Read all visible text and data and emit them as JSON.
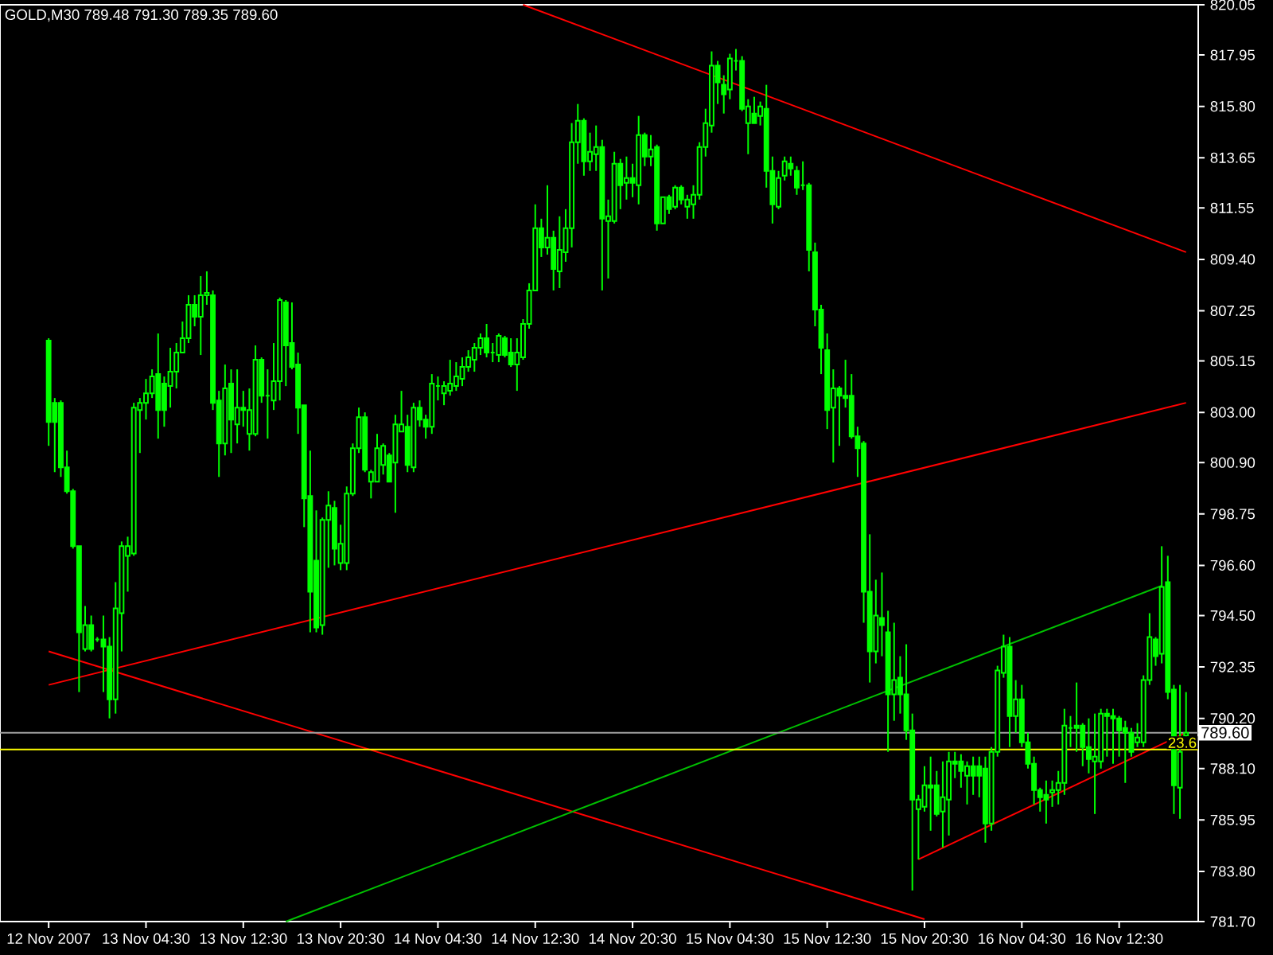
{
  "chart_data": {
    "type": "candlestick",
    "title": "GOLD,M30  789.48 791.30 789.35 789.60",
    "color": "#00ff00",
    "categories": [
      "12 Nov 2007",
      null,
      null,
      null,
      null,
      null,
      null,
      null,
      null,
      null,
      null,
      null,
      null,
      null,
      null,
      null,
      "13 Nov 04:30",
      null,
      null,
      null,
      null,
      null,
      null,
      null,
      null,
      null,
      null,
      null,
      null,
      null,
      null,
      null,
      "13 Nov 12:30",
      null,
      null,
      null,
      null,
      null,
      null,
      null,
      null,
      null,
      null,
      null,
      null,
      null,
      null,
      null,
      "13 Nov 20:30",
      null,
      null,
      null,
      null,
      null,
      null,
      null,
      null,
      null,
      null,
      null,
      null,
      null,
      null,
      null,
      "14 Nov 04:30",
      null,
      null,
      null,
      null,
      null,
      null,
      null,
      null,
      null,
      null,
      null,
      null,
      null,
      null,
      null,
      "14 Nov 12:30",
      null,
      null,
      null,
      null,
      null,
      null,
      null,
      null,
      null,
      null,
      null,
      null,
      null,
      null,
      null,
      "14 Nov 20:30",
      null,
      null,
      null,
      null,
      null,
      null,
      null,
      null,
      null,
      null,
      null,
      null,
      null,
      null,
      null,
      "15 Nov 04:30",
      null,
      null,
      null,
      null,
      null,
      null,
      null,
      null,
      null,
      null,
      null,
      null,
      null,
      null,
      null,
      "15 Nov 12:30",
      null,
      null,
      null,
      null,
      null,
      null,
      null,
      null,
      null,
      null,
      null,
      null,
      null,
      null,
      null,
      "15 Nov 20:30",
      null,
      null,
      null,
      null,
      null,
      null,
      null,
      null,
      null,
      null,
      null,
      null,
      null,
      null,
      null,
      "16 Nov 04:30",
      null,
      null,
      null,
      null,
      null,
      null,
      null,
      null,
      null,
      null,
      null,
      null,
      null,
      null,
      null,
      "16 Nov 12:30",
      null,
      null,
      null,
      null,
      null,
      null,
      null,
      null,
      null,
      null,
      null
    ],
    "ohlc": [
      [
        806.0,
        806.1,
        801.6,
        802.6
      ],
      [
        803.4,
        803.6,
        800.5,
        802.6
      ],
      [
        803.4,
        803.5,
        800.3,
        800.7
      ],
      [
        800.7,
        801.4,
        799.6,
        799.7
      ],
      [
        799.7,
        799.8,
        797.3,
        797.4
      ],
      [
        797.4,
        797.4,
        791.3,
        793.8
      ],
      [
        793.1,
        794.9,
        793.0,
        794.1
      ],
      [
        794.1,
        794.5,
        793.0,
        793.1
      ],
      [
        793.5,
        793.6,
        793.4,
        793.5
      ],
      [
        793.5,
        794.5,
        791.3,
        793.2
      ],
      [
        793.2,
        793.6,
        790.2,
        791.0
      ],
      [
        791.0,
        795.9,
        790.4,
        794.8
      ],
      [
        794.6,
        797.6,
        793.0,
        797.4
      ],
      [
        797.0,
        797.8,
        795.5,
        797.4
      ],
      [
        797.1,
        803.4,
        797.0,
        803.2
      ],
      [
        803.1,
        803.6,
        801.3,
        803.4
      ],
      [
        803.4,
        804.4,
        802.7,
        803.8
      ],
      [
        803.8,
        804.8,
        803.6,
        804.5
      ],
      [
        804.6,
        806.3,
        801.9,
        803.1
      ],
      [
        804.2,
        804.5,
        802.4,
        803.1
      ],
      [
        804.1,
        805.7,
        803.2,
        804.7
      ],
      [
        804.7,
        805.9,
        804.0,
        805.5
      ],
      [
        805.5,
        806.8,
        805.5,
        806.1
      ],
      [
        806.1,
        807.9,
        805.9,
        807.5
      ],
      [
        807.5,
        807.9,
        806.6,
        807.0
      ],
      [
        807.0,
        808.7,
        805.4,
        807.9
      ],
      [
        807.9,
        808.9,
        807.5,
        808.0
      ],
      [
        807.9,
        808.1,
        803.1,
        803.4
      ],
      [
        803.5,
        803.9,
        800.3,
        801.7
      ],
      [
        801.7,
        805.0,
        801.2,
        804.0
      ],
      [
        804.2,
        804.8,
        801.3,
        802.7
      ],
      [
        802.5,
        804.8,
        801.7,
        803.2
      ],
      [
        803.2,
        803.9,
        802.4,
        803.1
      ],
      [
        802.1,
        804.0,
        801.4,
        803.1
      ],
      [
        802.1,
        805.8,
        802.0,
        805.2
      ],
      [
        805.2,
        805.3,
        803.4,
        803.7
      ],
      [
        803.7,
        804.8,
        801.9,
        803.7
      ],
      [
        803.5,
        805.9,
        803.1,
        804.3
      ],
      [
        804.3,
        807.8,
        803.5,
        807.7
      ],
      [
        807.6,
        807.7,
        804.1,
        805.8
      ],
      [
        805.9,
        807.6,
        804.8,
        804.9
      ],
      [
        805.0,
        805.5,
        802.1,
        803.2
      ],
      [
        803.3,
        803.3,
        798.2,
        799.4
      ],
      [
        799.5,
        801.4,
        793.8,
        795.5
      ],
      [
        796.8,
        798.9,
        793.8,
        794.0
      ],
      [
        794.1,
        798.6,
        793.7,
        798.5
      ],
      [
        798.5,
        799.7,
        796.5,
        799.1
      ],
      [
        799.0,
        799.3,
        796.6,
        797.3
      ],
      [
        796.7,
        798.3,
        796.4,
        797.5
      ],
      [
        796.7,
        799.9,
        796.4,
        799.6
      ],
      [
        799.6,
        801.7,
        799.5,
        801.5
      ],
      [
        801.5,
        803.2,
        801.3,
        802.8
      ],
      [
        802.8,
        803.0,
        800.5,
        800.6
      ],
      [
        800.1,
        800.6,
        799.4,
        800.5
      ],
      [
        800.1,
        802.1,
        800.1,
        801.5
      ],
      [
        800.8,
        801.7,
        800.4,
        801.6
      ],
      [
        801.2,
        801.3,
        800.1,
        800.1
      ],
      [
        800.9,
        802.9,
        798.8,
        802.5
      ],
      [
        802.2,
        803.9,
        802.2,
        802.5
      ],
      [
        802.4,
        802.9,
        800.5,
        800.8
      ],
      [
        800.7,
        803.4,
        800.5,
        803.2
      ],
      [
        803.2,
        803.5,
        802.4,
        802.7
      ],
      [
        802.7,
        802.9,
        801.9,
        802.4
      ],
      [
        802.4,
        804.6,
        802.1,
        804.2
      ],
      [
        804.1,
        804.5,
        803.5,
        804.1
      ],
      [
        803.8,
        804.3,
        803.3,
        804.1
      ],
      [
        803.9,
        805.2,
        803.7,
        804.2
      ],
      [
        804.1,
        805.1,
        803.9,
        804.5
      ],
      [
        804.4,
        805.3,
        804.1,
        804.9
      ],
      [
        804.9,
        805.6,
        804.7,
        805.3
      ],
      [
        805.2,
        805.9,
        804.7,
        805.7
      ],
      [
        805.7,
        806.3,
        805.4,
        806.1
      ],
      [
        806.1,
        806.7,
        805.3,
        805.5
      ],
      [
        805.5,
        805.9,
        805.1,
        805.5
      ],
      [
        805.4,
        806.3,
        805.1,
        806.2
      ],
      [
        806.1,
        806.2,
        805.3,
        805.4
      ],
      [
        805.5,
        806.1,
        804.9,
        805.0
      ],
      [
        805.0,
        806.1,
        803.9,
        805.5
      ],
      [
        805.3,
        806.9,
        805.2,
        806.7
      ],
      [
        806.7,
        808.4,
        806.5,
        808.1
      ],
      [
        808.1,
        811.7,
        808.1,
        810.7
      ],
      [
        810.7,
        811.1,
        809.5,
        809.9
      ],
      [
        809.9,
        812.5,
        809.6,
        810.3
      ],
      [
        810.3,
        810.6,
        808.1,
        809.0
      ],
      [
        808.9,
        811.2,
        808.2,
        809.8
      ],
      [
        809.7,
        811.5,
        809.3,
        810.7
      ],
      [
        810.7,
        815.1,
        809.9,
        814.3
      ],
      [
        814.3,
        815.9,
        813.4,
        815.2
      ],
      [
        815.2,
        815.3,
        812.9,
        813.5
      ],
      [
        813.5,
        814.7,
        813.1,
        813.9
      ],
      [
        813.8,
        815.0,
        813.1,
        814.1
      ],
      [
        814.1,
        814.4,
        808.1,
        811.1
      ],
      [
        811.0,
        811.9,
        808.6,
        811.2
      ],
      [
        811.0,
        813.9,
        810.9,
        813.4
      ],
      [
        813.4,
        813.6,
        811.5,
        812.5
      ],
      [
        812.6,
        813.7,
        811.9,
        812.8
      ],
      [
        812.8,
        813.4,
        812.0,
        812.6
      ],
      [
        812.5,
        815.4,
        811.7,
        814.6
      ],
      [
        814.6,
        814.7,
        813.3,
        813.7
      ],
      [
        813.7,
        814.6,
        813.3,
        814.0
      ],
      [
        814.1,
        814.2,
        810.6,
        810.9
      ],
      [
        810.9,
        812.0,
        810.9,
        812.0
      ],
      [
        812.0,
        812.1,
        811.3,
        811.5
      ],
      [
        811.6,
        812.5,
        811.5,
        812.4
      ],
      [
        812.4,
        812.5,
        811.7,
        811.9
      ],
      [
        811.6,
        812.1,
        811.1,
        811.9
      ],
      [
        811.7,
        812.5,
        811.1,
        812.1
      ],
      [
        812.1,
        814.3,
        811.9,
        814.1
      ],
      [
        814.1,
        815.7,
        813.7,
        815.1
      ],
      [
        815.0,
        818.1,
        814.7,
        817.5
      ],
      [
        817.5,
        817.7,
        815.9,
        816.8
      ],
      [
        816.7,
        817.1,
        815.5,
        816.3
      ],
      [
        816.5,
        818.0,
        816.1,
        817.8
      ],
      [
        817.7,
        818.2,
        817.3,
        817.7
      ],
      [
        817.7,
        817.9,
        815.6,
        815.7
      ],
      [
        815.1,
        816.1,
        813.8,
        815.8
      ],
      [
        815.5,
        816.2,
        815.1,
        815.1
      ],
      [
        815.4,
        816.0,
        815.0,
        815.8
      ],
      [
        815.7,
        816.7,
        812.4,
        813.1
      ],
      [
        813.1,
        813.7,
        810.9,
        811.7
      ],
      [
        811.6,
        813.1,
        811.5,
        812.8
      ],
      [
        812.9,
        813.7,
        812.7,
        813.5
      ],
      [
        813.4,
        813.7,
        812.9,
        813.2
      ],
      [
        813.1,
        813.3,
        812.1,
        812.4
      ],
      [
        812.5,
        813.5,
        812.3,
        812.5
      ],
      [
        812.5,
        812.6,
        808.9,
        809.8
      ],
      [
        809.7,
        810.1,
        806.6,
        807.3
      ],
      [
        807.3,
        807.5,
        804.6,
        805.7
      ],
      [
        805.6,
        806.3,
        802.3,
        803.1
      ],
      [
        803.2,
        804.8,
        800.9,
        804.0
      ],
      [
        804.0,
        804.1,
        801.6,
        803.7
      ],
      [
        803.7,
        805.2,
        803.2,
        803.6
      ],
      [
        803.7,
        804.6,
        801.9,
        802.0
      ],
      [
        802.0,
        802.4,
        800.3,
        801.5
      ],
      [
        801.7,
        801.8,
        794.2,
        795.5
      ],
      [
        795.5,
        797.9,
        791.7,
        793.0
      ],
      [
        793.0,
        796.0,
        792.5,
        794.5
      ],
      [
        794.4,
        796.3,
        792.8,
        794.1
      ],
      [
        793.8,
        794.7,
        788.8,
        791.2
      ],
      [
        791.2,
        794.2,
        790.1,
        791.8
      ],
      [
        791.9,
        792.8,
        790.4,
        791.2
      ],
      [
        791.2,
        793.3,
        789.3,
        789.7
      ],
      [
        789.7,
        790.4,
        783.0,
        786.8
      ],
      [
        786.4,
        787.0,
        784.3,
        786.8
      ],
      [
        786.5,
        788.2,
        786.3,
        787.4
      ],
      [
        787.4,
        788.6,
        785.5,
        787.3
      ],
      [
        787.4,
        788.0,
        786.1,
        786.2
      ],
      [
        786.3,
        788.4,
        784.8,
        786.9
      ],
      [
        786.8,
        788.8,
        785.3,
        788.4
      ],
      [
        788.4,
        788.8,
        787.7,
        788.3
      ],
      [
        788.4,
        788.7,
        787.3,
        788.0
      ],
      [
        787.8,
        788.4,
        786.6,
        788.2
      ],
      [
        788.2,
        788.6,
        787.0,
        787.8
      ],
      [
        788.2,
        788.6,
        786.9,
        787.8
      ],
      [
        788.1,
        788.6,
        785.0,
        785.8
      ],
      [
        785.8,
        789.0,
        785.5,
        788.8
      ],
      [
        788.8,
        792.4,
        788.6,
        792.2
      ],
      [
        792.1,
        793.7,
        791.9,
        793.2
      ],
      [
        793.2,
        793.6,
        789.0,
        790.3
      ],
      [
        790.3,
        791.8,
        789.6,
        791.0
      ],
      [
        791.0,
        791.6,
        789.0,
        789.2
      ],
      [
        789.2,
        789.6,
        788.1,
        788.3
      ],
      [
        788.3,
        788.6,
        786.6,
        787.2
      ],
      [
        787.2,
        787.3,
        786.3,
        786.9
      ],
      [
        787.0,
        787.6,
        785.8,
        786.8
      ],
      [
        787.1,
        787.6,
        786.5,
        787.2
      ],
      [
        787.2,
        788.0,
        786.6,
        787.5
      ],
      [
        787.5,
        790.6,
        787.0,
        789.9
      ],
      [
        789.8,
        790.3,
        789.0,
        789.8
      ],
      [
        789.9,
        791.7,
        788.8,
        789.8
      ],
      [
        789.9,
        790.0,
        788.2,
        789.0
      ],
      [
        789.0,
        790.2,
        787.9,
        788.5
      ],
      [
        788.4,
        790.4,
        786.2,
        788.6
      ],
      [
        788.4,
        790.6,
        788.1,
        790.4
      ],
      [
        790.4,
        790.6,
        788.6,
        790.3
      ],
      [
        790.3,
        790.6,
        788.3,
        790.2
      ],
      [
        790.2,
        790.3,
        788.6,
        789.7
      ],
      [
        789.8,
        790.1,
        787.5,
        789.6
      ],
      [
        789.6,
        789.8,
        788.6,
        788.8
      ],
      [
        789.2,
        790.0,
        789.0,
        789.4
      ],
      [
        789.2,
        792.0,
        789.0,
        791.8
      ],
      [
        791.8,
        794.6,
        791.6,
        793.6
      ],
      [
        793.5,
        793.6,
        792.4,
        792.8
      ],
      [
        792.9,
        797.4,
        792.5,
        795.7
      ],
      [
        795.9,
        797.0,
        791.0,
        791.3
      ],
      [
        791.4,
        791.6,
        786.2,
        787.4
      ],
      [
        787.3,
        791.6,
        786.0,
        788.8
      ],
      [
        789.48,
        791.3,
        789.35,
        789.6
      ]
    ],
    "series": [
      {
        "type": "line",
        "color": "#ff0000",
        "values": [
          793.0,
          null,
          null,
          null,
          null,
          null,
          null,
          null,
          null,
          null,
          null,
          null,
          null,
          null,
          null,
          null,
          null,
          null,
          null,
          null,
          null,
          null,
          null,
          null,
          null,
          null,
          null,
          null,
          null,
          null,
          null,
          null,
          null,
          null,
          null,
          null,
          null,
          null,
          null,
          null,
          null,
          null,
          null,
          null,
          null,
          null,
          null,
          null,
          null,
          null,
          null,
          null,
          null,
          null,
          null,
          null,
          null,
          null,
          null,
          null,
          null,
          null,
          null,
          null,
          null,
          null,
          null,
          null,
          null,
          null,
          null,
          null,
          null,
          null,
          null,
          null,
          null,
          null,
          null,
          null,
          null,
          null,
          null,
          null,
          null,
          null,
          null,
          null,
          null,
          null,
          null,
          null,
          null,
          null,
          null,
          null,
          null,
          null,
          null,
          null,
          null,
          null,
          null,
          null,
          null,
          null,
          null,
          null,
          null,
          null,
          null,
          null,
          null,
          null,
          null,
          null,
          null,
          null,
          null,
          null,
          null,
          null,
          null,
          null,
          null,
          null,
          null,
          null,
          null,
          null,
          null,
          null,
          null,
          null,
          null,
          null,
          null,
          null,
          null,
          null,
          null,
          null,
          null,
          null,
          781.8,
          null,
          null,
          null,
          null,
          null,
          null,
          null,
          null,
          null,
          null,
          null,
          null,
          null,
          null,
          null,
          null,
          null,
          null,
          null,
          null,
          null,
          null,
          null,
          null,
          null,
          null,
          null,
          null,
          null,
          null,
          null,
          null,
          null,
          null,
          null,
          null,
          null,
          null,
          null,
          null,
          null,
          null,
          null
        ]
      },
      {
        "type": "line",
        "color": "#ff0000",
        "values": [
          791.6,
          null,
          null,
          null,
          null,
          null,
          null,
          null,
          null,
          null,
          null,
          null,
          null,
          null,
          null,
          null,
          null,
          null,
          null,
          null,
          null,
          null,
          null,
          null,
          null,
          null,
          null,
          null,
          null,
          null,
          null,
          null,
          null,
          null,
          null,
          null,
          null,
          null,
          null,
          null,
          null,
          null,
          null,
          null,
          null,
          null,
          null,
          null,
          null,
          null,
          null,
          null,
          null,
          null,
          null,
          null,
          null,
          null,
          null,
          null,
          null,
          null,
          null,
          null,
          null,
          null,
          null,
          null,
          null,
          null,
          null,
          null,
          null,
          null,
          null,
          null,
          null,
          null,
          null,
          null,
          null,
          null,
          null,
          null,
          null,
          null,
          null,
          null,
          null,
          null,
          null,
          null,
          null,
          null,
          null,
          null,
          null,
          null,
          null,
          null,
          null,
          null,
          null,
          null,
          null,
          null,
          null,
          null,
          null,
          null,
          null,
          null,
          null,
          null,
          null,
          null,
          null,
          null,
          null,
          null,
          null,
          null,
          null,
          null,
          null,
          null,
          null,
          null,
          null,
          null,
          null,
          null,
          null,
          null,
          null,
          null,
          null,
          null,
          null,
          null,
          null,
          null,
          null,
          null,
          null,
          null,
          null,
          null,
          null,
          null,
          null,
          null,
          null,
          null,
          null,
          null,
          null,
          null,
          null,
          null,
          null,
          null,
          null,
          null,
          null,
          null,
          null,
          null,
          null,
          null,
          null,
          null,
          null,
          null,
          null,
          null,
          null,
          null,
          null,
          null,
          null,
          null,
          null,
          null,
          null,
          null,
          null,
          803.4
        ]
      },
      {
        "type": "line",
        "color": "#ff0000",
        "values": [
          null,
          null,
          null,
          null,
          null,
          null,
          null,
          null,
          null,
          null,
          null,
          null,
          null,
          null,
          null,
          null,
          null,
          null,
          null,
          null,
          null,
          null,
          null,
          null,
          null,
          null,
          null,
          null,
          null,
          null,
          null,
          null,
          null,
          null,
          null,
          null,
          null,
          null,
          null,
          null,
          null,
          null,
          null,
          null,
          null,
          null,
          null,
          null,
          null,
          null,
          null,
          null,
          null,
          null,
          null,
          null,
          null,
          null,
          null,
          null,
          null,
          null,
          null,
          null,
          null,
          null,
          null,
          null,
          null,
          null,
          null,
          null,
          null,
          null,
          null,
          null,
          null,
          null,
          820.05,
          null,
          null,
          null,
          null,
          null,
          null,
          null,
          null,
          null,
          null,
          null,
          null,
          null,
          null,
          null,
          null,
          null,
          null,
          null,
          null,
          null,
          null,
          null,
          null,
          null,
          null,
          null,
          null,
          null,
          null,
          null,
          null,
          null,
          null,
          null,
          null,
          null,
          null,
          null,
          null,
          null,
          null,
          null,
          null,
          null,
          null,
          null,
          null,
          null,
          null,
          null,
          null,
          null,
          null,
          null,
          null,
          null,
          null,
          null,
          null,
          null,
          null,
          null,
          null,
          null,
          null,
          null,
          null,
          null,
          null,
          null,
          null,
          null,
          null,
          null,
          null,
          null,
          null,
          null,
          null,
          null,
          null,
          null,
          null,
          null,
          null,
          null,
          null,
          null,
          null,
          null,
          null,
          null,
          null,
          null,
          null,
          null,
          null,
          null,
          null,
          null,
          null,
          null,
          null,
          null,
          null,
          null,
          null,
          809.7
        ]
      },
      {
        "type": "line",
        "color": "#ff0000",
        "values": [
          null,
          null,
          null,
          null,
          null,
          null,
          null,
          null,
          null,
          null,
          null,
          null,
          null,
          null,
          null,
          null,
          null,
          null,
          null,
          null,
          null,
          null,
          null,
          null,
          null,
          null,
          null,
          null,
          null,
          null,
          null,
          null,
          null,
          null,
          null,
          null,
          null,
          null,
          null,
          null,
          null,
          null,
          null,
          null,
          null,
          null,
          null,
          null,
          null,
          null,
          null,
          null,
          null,
          null,
          null,
          null,
          null,
          null,
          null,
          null,
          null,
          null,
          null,
          null,
          null,
          null,
          null,
          null,
          null,
          null,
          null,
          null,
          null,
          null,
          null,
          null,
          null,
          null,
          null,
          null,
          null,
          null,
          null,
          null,
          null,
          null,
          null,
          null,
          null,
          null,
          null,
          null,
          null,
          null,
          null,
          null,
          null,
          null,
          null,
          null,
          null,
          null,
          null,
          null,
          null,
          null,
          null,
          null,
          null,
          null,
          null,
          null,
          null,
          null,
          null,
          null,
          null,
          null,
          null,
          null,
          null,
          null,
          null,
          null,
          null,
          null,
          null,
          null,
          null,
          null,
          null,
          null,
          null,
          null,
          null,
          null,
          null,
          null,
          null,
          null,
          null,
          null,
          null,
          784.3,
          null,
          null,
          null,
          null,
          null,
          null,
          null,
          null,
          null,
          null,
          null,
          null,
          null,
          null,
          null,
          null,
          null,
          null,
          null,
          null,
          null,
          null,
          null,
          null,
          null,
          null,
          null,
          null,
          null,
          null,
          null,
          null,
          null,
          null,
          null,
          null,
          null,
          null,
          null,
          null,
          null,
          null,
          null,
          789.6
        ]
      },
      {
        "type": "line",
        "color": "#00c000",
        "values": [
          null,
          null,
          null,
          null,
          null,
          null,
          null,
          null,
          null,
          null,
          null,
          null,
          null,
          null,
          null,
          null,
          null,
          null,
          null,
          null,
          null,
          null,
          null,
          null,
          null,
          null,
          null,
          null,
          null,
          null,
          null,
          null,
          null,
          null,
          null,
          null,
          null,
          null,
          null,
          781.7,
          null,
          null,
          null,
          null,
          null,
          null,
          null,
          null,
          null,
          null,
          null,
          null,
          null,
          null,
          null,
          null,
          null,
          null,
          null,
          null,
          null,
          null,
          null,
          null,
          null,
          null,
          null,
          null,
          null,
          null,
          null,
          null,
          null,
          null,
          null,
          null,
          null,
          null,
          null,
          null,
          null,
          null,
          null,
          null,
          null,
          null,
          null,
          null,
          null,
          null,
          null,
          null,
          null,
          null,
          null,
          null,
          null,
          null,
          null,
          null,
          null,
          null,
          null,
          null,
          null,
          null,
          null,
          null,
          null,
          null,
          null,
          null,
          null,
          null,
          null,
          null,
          null,
          null,
          null,
          null,
          null,
          null,
          null,
          null,
          null,
          null,
          null,
          null,
          null,
          null,
          null,
          null,
          null,
          null,
          null,
          null,
          null,
          null,
          null,
          null,
          null,
          null,
          null,
          null,
          null,
          null,
          null,
          null,
          null,
          null,
          null,
          null,
          null,
          null,
          null,
          null,
          null,
          null,
          null,
          null,
          null,
          null,
          null,
          null,
          null,
          null,
          null,
          null,
          null,
          null,
          null,
          null,
          null,
          null,
          null,
          null,
          null,
          null,
          null,
          null,
          null,
          null,
          null,
          795.75,
          null,
          null,
          null,
          null
        ]
      }
    ],
    "ref_lines": [
      {
        "axis": "y",
        "value": 789.6,
        "label": "789.60",
        "color": "#a0a0a0"
      },
      {
        "axis": "y",
        "value": 788.9,
        "color": "#ffff00"
      }
    ],
    "annotations": [
      {
        "text": "23.6",
        "y": 788.9
      }
    ],
    "ylim": [
      781.7,
      820.05
    ],
    "yticks": [
      {
        "value": 781.7,
        "label": "781.70"
      },
      {
        "value": 783.8,
        "label": "783.80"
      },
      {
        "value": 785.95,
        "label": "785.95"
      },
      {
        "value": 788.1,
        "label": "788.10"
      },
      {
        "value": 790.2,
        "label": "790.20"
      },
      {
        "value": 792.35,
        "label": "792.35"
      },
      {
        "value": 794.5,
        "label": "794.50"
      },
      {
        "value": 796.6,
        "label": "796.60"
      },
      {
        "value": 798.75,
        "label": "798.75"
      },
      {
        "value": 800.9,
        "label": "800.90"
      },
      {
        "value": 803.0,
        "label": "803.00"
      },
      {
        "value": 805.15,
        "label": "805.15"
      },
      {
        "value": 807.25,
        "label": "807.25"
      },
      {
        "value": 809.4,
        "label": "809.40"
      },
      {
        "value": 811.55,
        "label": "811.55"
      },
      {
        "value": 813.65,
        "label": "813.65"
      },
      {
        "value": 815.8,
        "label": "815.80"
      },
      {
        "value": 817.95,
        "label": "817.95"
      },
      {
        "value": 820.05,
        "label": "820.05"
      }
    ]
  }
}
